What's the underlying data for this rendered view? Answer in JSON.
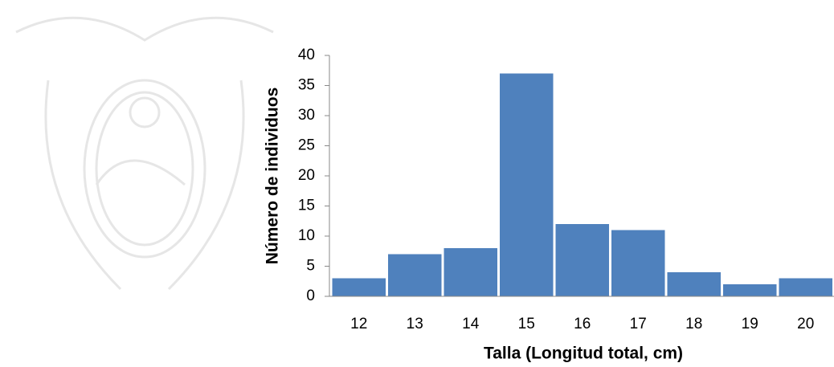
{
  "chart_data": {
    "type": "bar",
    "x_label": "Talla (Longitud total, cm)",
    "y_label": "Número de individuos",
    "categories": [
      "12",
      "13",
      "14",
      "15",
      "16",
      "17",
      "18",
      "19",
      "20"
    ],
    "values": [
      3,
      7,
      8,
      37,
      12,
      11,
      4,
      2,
      3
    ],
    "color": "#4f81bd",
    "ylim": [
      0,
      40
    ],
    "yticks": [
      0,
      5,
      10,
      15,
      20,
      25,
      30,
      35,
      40
    ],
    "grid": false
  }
}
